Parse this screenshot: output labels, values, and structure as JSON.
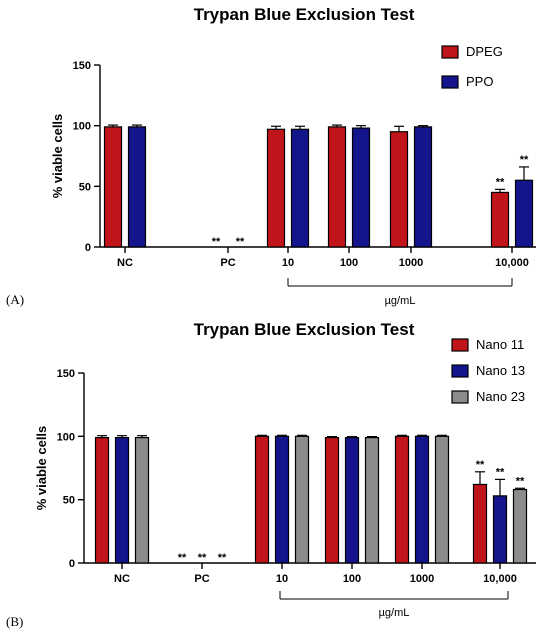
{
  "chart_data": [
    {
      "type": "bar",
      "panel_label": "(A)",
      "title": "Trypan Blue Exclusion Test",
      "ylabel": "% viable cells",
      "ylim": [
        0,
        150
      ],
      "yticks": [
        "0",
        "50",
        "100",
        "150"
      ],
      "categories": [
        "NC",
        "PC",
        "10",
        "100",
        "1000",
        "10,000"
      ],
      "bracket_label": "µg/mL",
      "legend_position": "top-right",
      "series": [
        {
          "name": "DPEG",
          "color": "#c0141b",
          "values": [
            99,
            0,
            97,
            99,
            95,
            45
          ],
          "errors": [
            1.5,
            0,
            2.5,
            1.5,
            4.5,
            2.5
          ],
          "marks": [
            "",
            "**",
            "",
            "",
            "",
            "**"
          ]
        },
        {
          "name": "PPO",
          "color": "#14148c",
          "values": [
            99,
            0,
            97,
            98,
            99,
            55
          ],
          "errors": [
            1.5,
            0,
            2.5,
            2,
            1,
            11
          ],
          "marks": [
            "",
            "**",
            "",
            "",
            "",
            "**"
          ]
        }
      ]
    },
    {
      "type": "bar",
      "panel_label": "(B)",
      "title": "Trypan Blue Exclusion Test",
      "ylabel": "% viable cells",
      "ylim": [
        0,
        150
      ],
      "yticks": [
        "0",
        "50",
        "100",
        "150"
      ],
      "categories": [
        "NC",
        "PC",
        "10",
        "100",
        "1000",
        "10,000"
      ],
      "bracket_label": "µg/mL",
      "legend_position": "top-right",
      "series": [
        {
          "name": "Nano 11",
          "color": "#c0141b",
          "values": [
            99,
            0,
            100,
            99,
            100,
            62
          ],
          "errors": [
            1.5,
            0,
            0.8,
            0.8,
            0.8,
            10
          ],
          "marks": [
            "",
            "**",
            "",
            "",
            "",
            "**"
          ]
        },
        {
          "name": "Nano 13",
          "color": "#14148c",
          "values": [
            99,
            0,
            100,
            99,
            100,
            53
          ],
          "errors": [
            1.5,
            0,
            0.8,
            0.8,
            0.8,
            13
          ],
          "marks": [
            "",
            "**",
            "",
            "",
            "",
            "**"
          ]
        },
        {
          "name": "Nano 23",
          "color": "#8c8c8c",
          "values": [
            99,
            0,
            100,
            99,
            100,
            58
          ],
          "errors": [
            1.5,
            0,
            0.8,
            0.8,
            0.8,
            1
          ],
          "marks": [
            "",
            "**",
            "",
            "",
            "",
            "**"
          ]
        }
      ]
    }
  ]
}
